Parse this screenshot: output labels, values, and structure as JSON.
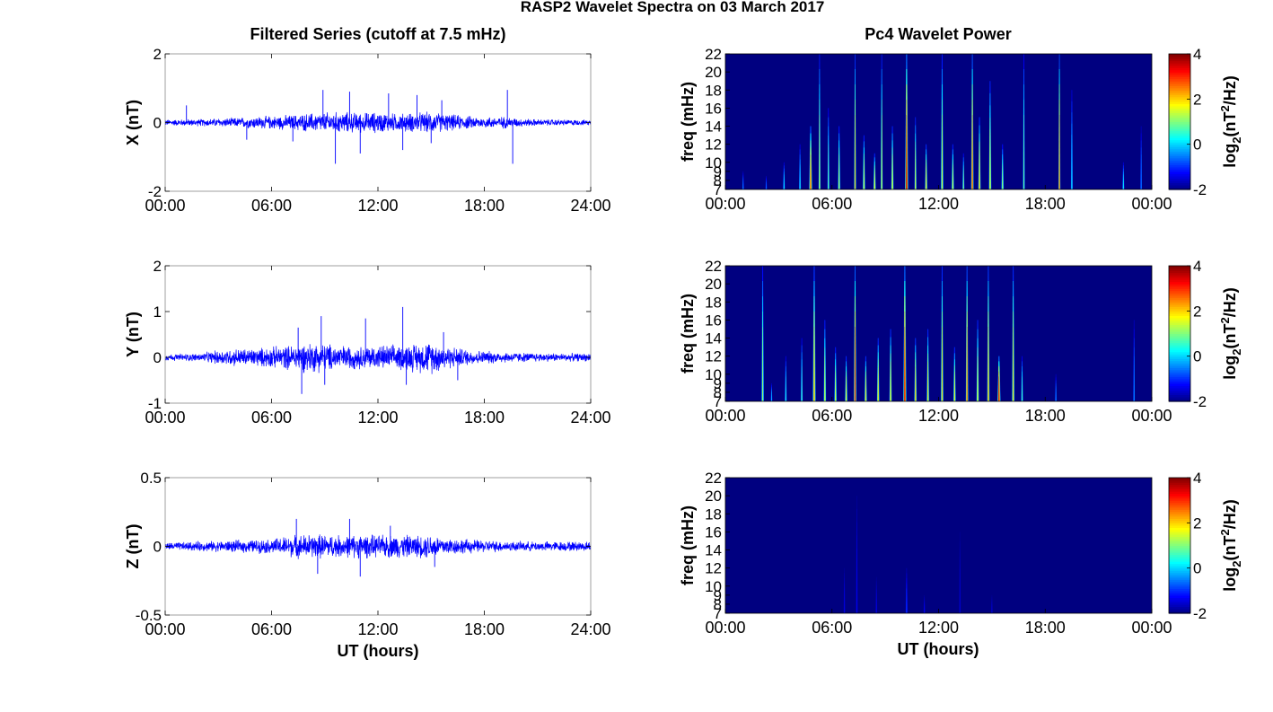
{
  "figure": {
    "suptitle": "RASP2 Wavelet Spectra on 03 March 2017",
    "left_title": "Filtered Series (cutoff at 7.5 mHz)",
    "right_title": "Pc4 Wavelet Power",
    "xlabel": "UT (hours)",
    "colors": {
      "trace": "#0000ff",
      "axis": "#000000",
      "grid_box": "#000000"
    }
  },
  "chart_data": [
    {
      "type": "line",
      "panel": "X",
      "ylabel": "X (nT)",
      "xlim_hours": [
        0,
        24
      ],
      "x_ticks": [
        "00:00",
        "06:00",
        "12:00",
        "18:00",
        "24:00"
      ],
      "ylim": [
        -2,
        2
      ],
      "y_ticks": [
        "2",
        "0",
        "-2"
      ],
      "y_tick_values": [
        2,
        0,
        -2
      ],
      "noise_envelope": {
        "hours": [
          0,
          2,
          4,
          5,
          6,
          7,
          8,
          9,
          10,
          11,
          12,
          13,
          14,
          15,
          16,
          17,
          18,
          19,
          20,
          21,
          22,
          24
        ],
        "amplitude_nT": [
          0.1,
          0.12,
          0.16,
          0.2,
          0.22,
          0.25,
          0.3,
          0.34,
          0.35,
          0.33,
          0.35,
          0.3,
          0.32,
          0.35,
          0.28,
          0.22,
          0.18,
          0.2,
          0.14,
          0.11,
          0.1,
          0.09
        ]
      },
      "spikes": [
        {
          "hour": 1.2,
          "value": 0.5
        },
        {
          "hour": 4.6,
          "value": -0.5
        },
        {
          "hour": 7.2,
          "value": -0.55
        },
        {
          "hour": 8.9,
          "value": 0.95
        },
        {
          "hour": 9.6,
          "value": -1.2
        },
        {
          "hour": 10.4,
          "value": 0.9
        },
        {
          "hour": 11.0,
          "value": -0.9
        },
        {
          "hour": 12.6,
          "value": 0.85
        },
        {
          "hour": 13.4,
          "value": -0.8
        },
        {
          "hour": 14.2,
          "value": 0.8
        },
        {
          "hour": 15.0,
          "value": -0.6
        },
        {
          "hour": 15.6,
          "value": 0.65
        },
        {
          "hour": 19.3,
          "value": 0.95
        },
        {
          "hour": 19.6,
          "value": -1.2
        }
      ]
    },
    {
      "type": "line",
      "panel": "Y",
      "ylabel": "Y (nT)",
      "xlim_hours": [
        0,
        24
      ],
      "x_ticks": [
        "00:00",
        "06:00",
        "12:00",
        "18:00",
        "24:00"
      ],
      "ylim": [
        -1,
        2
      ],
      "y_ticks": [
        "2",
        "1",
        "0",
        "-1"
      ],
      "y_tick_values": [
        2,
        1,
        0,
        -1
      ],
      "noise_envelope": {
        "hours": [
          0,
          2,
          3,
          4,
          5,
          6,
          7,
          8,
          9,
          10,
          11,
          12,
          13,
          14,
          15,
          16,
          17,
          18,
          19,
          20,
          22,
          24
        ],
        "amplitude_nT": [
          0.08,
          0.1,
          0.18,
          0.22,
          0.22,
          0.26,
          0.3,
          0.38,
          0.35,
          0.3,
          0.28,
          0.3,
          0.3,
          0.35,
          0.4,
          0.28,
          0.2,
          0.16,
          0.14,
          0.12,
          0.1,
          0.1
        ]
      },
      "spikes": [
        {
          "hour": 7.5,
          "value": 0.65
        },
        {
          "hour": 7.7,
          "value": -0.8
        },
        {
          "hour": 8.8,
          "value": 0.9
        },
        {
          "hour": 9.0,
          "value": -0.6
        },
        {
          "hour": 11.3,
          "value": 0.85
        },
        {
          "hour": 13.4,
          "value": 1.1
        },
        {
          "hour": 13.6,
          "value": -0.6
        },
        {
          "hour": 15.7,
          "value": 0.55
        },
        {
          "hour": 16.5,
          "value": -0.5
        }
      ]
    },
    {
      "type": "line",
      "panel": "Z",
      "ylabel": "Z (nT)",
      "xlim_hours": [
        0,
        24
      ],
      "x_ticks": [
        "00:00",
        "06:00",
        "12:00",
        "18:00",
        "24:00"
      ],
      "ylim": [
        -0.5,
        0.5
      ],
      "y_ticks": [
        "0.5",
        "0",
        "-0.5"
      ],
      "y_tick_values": [
        0.5,
        0,
        -0.5
      ],
      "noise_envelope": {
        "hours": [
          0,
          2,
          4,
          6,
          7,
          8,
          9,
          10,
          11,
          12,
          13,
          14,
          15,
          16,
          17,
          18,
          20,
          22,
          24
        ],
        "amplitude_nT": [
          0.03,
          0.04,
          0.05,
          0.06,
          0.09,
          0.1,
          0.1,
          0.09,
          0.1,
          0.09,
          0.1,
          0.09,
          0.1,
          0.07,
          0.06,
          0.05,
          0.04,
          0.04,
          0.04
        ]
      },
      "spikes": [
        {
          "hour": 7.4,
          "value": 0.2
        },
        {
          "hour": 8.6,
          "value": -0.2
        },
        {
          "hour": 10.4,
          "value": 0.2
        },
        {
          "hour": 11.0,
          "value": -0.22
        },
        {
          "hour": 12.7,
          "value": 0.15
        },
        {
          "hour": 15.2,
          "value": -0.15
        }
      ]
    },
    {
      "type": "heatmap",
      "panel": "X",
      "ylabel": "freq (mHz)",
      "xlim_hours": [
        0,
        24
      ],
      "x_ticks": [
        "00:00",
        "06:00",
        "12:00",
        "18:00",
        "00:00"
      ],
      "ylim_mHz": [
        7,
        22
      ],
      "y_ticks": [
        "22",
        "20",
        "18",
        "16",
        "14",
        "12",
        "10",
        "9",
        "8",
        "7"
      ],
      "y_tick_values": [
        22,
        20,
        18,
        16,
        14,
        12,
        10,
        9,
        8,
        7
      ],
      "colorbar": {
        "label": "log2(nT^2/Hz)",
        "label_base": "log",
        "label_sub": "2",
        "label_pre": "(nT",
        "label_sup": "2",
        "label_post": "/Hz)",
        "range": [
          -2,
          4
        ],
        "ticks": [
          "4",
          "2",
          "0",
          "-2"
        ],
        "tick_values": [
          4,
          2,
          0,
          -2
        ]
      },
      "background_value": -2,
      "bursts": [
        {
          "hour": 1.0,
          "width_h": 0.1,
          "top_mHz": 9,
          "peak": -0.3
        },
        {
          "hour": 2.3,
          "width_h": 0.1,
          "top_mHz": 8.5,
          "peak": -0.5
        },
        {
          "hour": 3.3,
          "width_h": 0.12,
          "top_mHz": 10,
          "peak": 0.3
        },
        {
          "hour": 4.2,
          "width_h": 0.12,
          "top_mHz": 12,
          "peak": 0.4
        },
        {
          "hour": 4.8,
          "width_h": 0.18,
          "top_mHz": 14,
          "peak": 2.8
        },
        {
          "hour": 5.3,
          "width_h": 0.12,
          "top_mHz": 22,
          "peak": 1.6
        },
        {
          "hour": 5.8,
          "width_h": 0.12,
          "top_mHz": 16,
          "peak": 1.0
        },
        {
          "hour": 6.4,
          "width_h": 0.15,
          "top_mHz": 14,
          "peak": 1.4
        },
        {
          "hour": 7.3,
          "width_h": 0.12,
          "top_mHz": 22,
          "peak": 2.2
        },
        {
          "hour": 7.8,
          "width_h": 0.15,
          "top_mHz": 13,
          "peak": 1.6
        },
        {
          "hour": 8.4,
          "width_h": 0.15,
          "top_mHz": 11,
          "peak": 1.8
        },
        {
          "hour": 8.8,
          "width_h": 0.12,
          "top_mHz": 22,
          "peak": 1.7
        },
        {
          "hour": 9.4,
          "width_h": 0.15,
          "top_mHz": 14,
          "peak": 1.8
        },
        {
          "hour": 10.2,
          "width_h": 0.18,
          "top_mHz": 22,
          "peak": 3.6
        },
        {
          "hour": 10.7,
          "width_h": 0.12,
          "top_mHz": 15,
          "peak": 1.8
        },
        {
          "hour": 11.3,
          "width_h": 0.15,
          "top_mHz": 12,
          "peak": 2.0
        },
        {
          "hour": 12.2,
          "width_h": 0.15,
          "top_mHz": 22,
          "peak": 1.6
        },
        {
          "hour": 12.8,
          "width_h": 0.15,
          "top_mHz": 12,
          "peak": 1.6
        },
        {
          "hour": 13.4,
          "width_h": 0.12,
          "top_mHz": 11,
          "peak": 1.2
        },
        {
          "hour": 13.9,
          "width_h": 0.15,
          "top_mHz": 22,
          "peak": 3.0
        },
        {
          "hour": 14.3,
          "width_h": 0.15,
          "top_mHz": 15,
          "peak": 2.2
        },
        {
          "hour": 14.9,
          "width_h": 0.15,
          "top_mHz": 19,
          "peak": 1.8
        },
        {
          "hour": 15.6,
          "width_h": 0.15,
          "top_mHz": 12,
          "peak": 1.2
        },
        {
          "hour": 16.8,
          "width_h": 0.12,
          "top_mHz": 22,
          "peak": 1.0
        },
        {
          "hour": 18.8,
          "width_h": 0.12,
          "top_mHz": 22,
          "peak": 3.0
        },
        {
          "hour": 19.5,
          "width_h": 0.12,
          "top_mHz": 18,
          "peak": 0.3
        },
        {
          "hour": 22.4,
          "width_h": 0.12,
          "top_mHz": 10,
          "peak": 0.3
        },
        {
          "hour": 23.4,
          "width_h": 0.1,
          "top_mHz": 14,
          "peak": -0.3
        }
      ]
    },
    {
      "type": "heatmap",
      "panel": "Y",
      "ylabel": "freq (mHz)",
      "xlim_hours": [
        0,
        24
      ],
      "x_ticks": [
        "00:00",
        "06:00",
        "12:00",
        "18:00",
        "00:00"
      ],
      "ylim_mHz": [
        7,
        22
      ],
      "y_ticks": [
        "22",
        "20",
        "18",
        "16",
        "14",
        "12",
        "10",
        "9",
        "8",
        "7"
      ],
      "y_tick_values": [
        22,
        20,
        18,
        16,
        14,
        12,
        10,
        9,
        8,
        7
      ],
      "colorbar": {
        "label": "log2(nT^2/Hz)",
        "label_base": "log",
        "label_sub": "2",
        "label_pre": "(nT",
        "label_sup": "2",
        "label_post": "/Hz)",
        "range": [
          -2,
          4
        ],
        "ticks": [
          "4",
          "2",
          "0",
          "-2"
        ],
        "tick_values": [
          4,
          2,
          0,
          -2
        ]
      },
      "background_value": -2,
      "bursts": [
        {
          "hour": 2.1,
          "width_h": 0.15,
          "top_mHz": 22,
          "peak": 1.2
        },
        {
          "hour": 2.6,
          "width_h": 0.1,
          "top_mHz": 9,
          "peak": 0.0
        },
        {
          "hour": 3.4,
          "width_h": 0.12,
          "top_mHz": 12,
          "peak": 0.5
        },
        {
          "hour": 4.3,
          "width_h": 0.12,
          "top_mHz": 14,
          "peak": 0.8
        },
        {
          "hour": 5.0,
          "width_h": 0.18,
          "top_mHz": 22,
          "peak": 2.2
        },
        {
          "hour": 5.6,
          "width_h": 0.15,
          "top_mHz": 16,
          "peak": 1.6
        },
        {
          "hour": 6.2,
          "width_h": 0.15,
          "top_mHz": 13,
          "peak": 1.6
        },
        {
          "hour": 6.8,
          "width_h": 0.15,
          "top_mHz": 12,
          "peak": 1.8
        },
        {
          "hour": 7.3,
          "width_h": 0.15,
          "top_mHz": 22,
          "peak": 3.2
        },
        {
          "hour": 7.9,
          "width_h": 0.15,
          "top_mHz": 12,
          "peak": 2.0
        },
        {
          "hour": 8.6,
          "width_h": 0.15,
          "top_mHz": 14,
          "peak": 2.0
        },
        {
          "hour": 9.3,
          "width_h": 0.15,
          "top_mHz": 15,
          "peak": 2.0
        },
        {
          "hour": 10.1,
          "width_h": 0.18,
          "top_mHz": 22,
          "peak": 3.4
        },
        {
          "hour": 10.7,
          "width_h": 0.15,
          "top_mHz": 14,
          "peak": 2.2
        },
        {
          "hour": 11.4,
          "width_h": 0.15,
          "top_mHz": 15,
          "peak": 1.9
        },
        {
          "hour": 12.2,
          "width_h": 0.15,
          "top_mHz": 22,
          "peak": 2.0
        },
        {
          "hour": 12.9,
          "width_h": 0.15,
          "top_mHz": 13,
          "peak": 1.8
        },
        {
          "hour": 13.6,
          "width_h": 0.15,
          "top_mHz": 22,
          "peak": 2.8
        },
        {
          "hour": 14.2,
          "width_h": 0.15,
          "top_mHz": 16,
          "peak": 1.8
        },
        {
          "hour": 14.8,
          "width_h": 0.15,
          "top_mHz": 22,
          "peak": 2.4
        },
        {
          "hour": 15.4,
          "width_h": 0.18,
          "top_mHz": 12,
          "peak": 3.4
        },
        {
          "hour": 16.2,
          "width_h": 0.15,
          "top_mHz": 22,
          "peak": 2.0
        },
        {
          "hour": 16.7,
          "width_h": 0.12,
          "top_mHz": 12,
          "peak": 0.8
        },
        {
          "hour": 18.6,
          "width_h": 0.1,
          "top_mHz": 10,
          "peak": -0.2
        },
        {
          "hour": 23.0,
          "width_h": 0.1,
          "top_mHz": 16,
          "peak": -0.2
        }
      ]
    },
    {
      "type": "heatmap",
      "panel": "Z",
      "ylabel": "freq (mHz)",
      "xlim_hours": [
        0,
        24
      ],
      "x_ticks": [
        "00:00",
        "06:00",
        "12:00",
        "18:00",
        "00:00"
      ],
      "ylim_mHz": [
        7,
        22
      ],
      "y_ticks": [
        "22",
        "20",
        "18",
        "16",
        "14",
        "12",
        "10",
        "9",
        "8",
        "7"
      ],
      "y_tick_values": [
        22,
        20,
        18,
        16,
        14,
        12,
        10,
        9,
        8,
        7
      ],
      "colorbar": {
        "label": "log2(nT^2/Hz)",
        "label_base": "log",
        "label_sub": "2",
        "label_pre": "(nT",
        "label_sup": "2",
        "label_post": "/Hz)",
        "range": [
          -2,
          4
        ],
        "ticks": [
          "4",
          "2",
          "0",
          "-2"
        ],
        "tick_values": [
          4,
          2,
          0,
          -2
        ]
      },
      "background_value": -2,
      "bursts": [
        {
          "hour": 6.7,
          "width_h": 0.1,
          "top_mHz": 12,
          "peak": -1.4
        },
        {
          "hour": 7.4,
          "width_h": 0.1,
          "top_mHz": 20,
          "peak": -1.3
        },
        {
          "hour": 8.5,
          "width_h": 0.1,
          "top_mHz": 11,
          "peak": -1.4
        },
        {
          "hour": 10.2,
          "width_h": 0.12,
          "top_mHz": 12,
          "peak": -0.9
        },
        {
          "hour": 11.2,
          "width_h": 0.1,
          "top_mHz": 9,
          "peak": -1.3
        },
        {
          "hour": 13.2,
          "width_h": 0.1,
          "top_mHz": 16,
          "peak": -1.5
        },
        {
          "hour": 15.0,
          "width_h": 0.1,
          "top_mHz": 9,
          "peak": -1.5
        }
      ]
    }
  ]
}
